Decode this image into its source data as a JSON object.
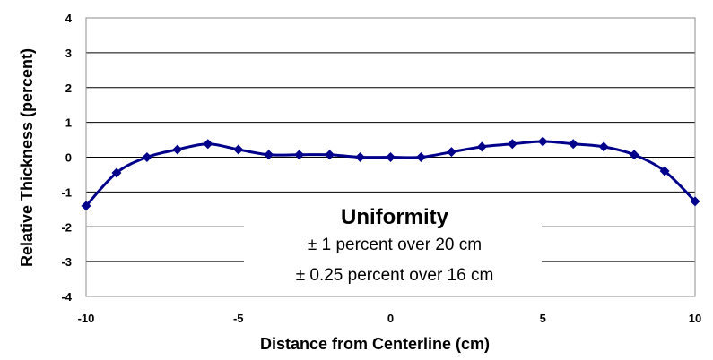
{
  "chart_data": {
    "type": "line",
    "title": "",
    "xlabel": "Distance from Centerline (cm)",
    "ylabel": "Relative Thickness (percent)",
    "xlim": [
      -10,
      10
    ],
    "ylim": [
      -4,
      4
    ],
    "x_ticks": [
      -10,
      -5,
      0,
      5,
      10
    ],
    "y_ticks": [
      -4,
      -3,
      -2,
      -1,
      0,
      1,
      2,
      3,
      4
    ],
    "grid": "horizontal",
    "legend": "none",
    "series": [
      {
        "color": "#00008B",
        "marker": "diamond",
        "smooth": true,
        "x": [
          -10,
          -9,
          -8,
          -7,
          -6,
          -5,
          -4,
          -3,
          -2,
          -1,
          0,
          1,
          2,
          3,
          4,
          5,
          6,
          7,
          8,
          9,
          10
        ],
        "y": [
          -1.4,
          -0.45,
          0.0,
          0.22,
          0.38,
          0.22,
          0.07,
          0.07,
          0.07,
          0.0,
          0.0,
          0.0,
          0.15,
          0.3,
          0.38,
          0.45,
          0.38,
          0.3,
          0.07,
          -0.4,
          -1.27
        ]
      }
    ],
    "annotation": {
      "title": "Uniformity",
      "lines": [
        "± 1 percent over 20 cm",
        "± 0.25 percent over 16 cm"
      ]
    }
  }
}
